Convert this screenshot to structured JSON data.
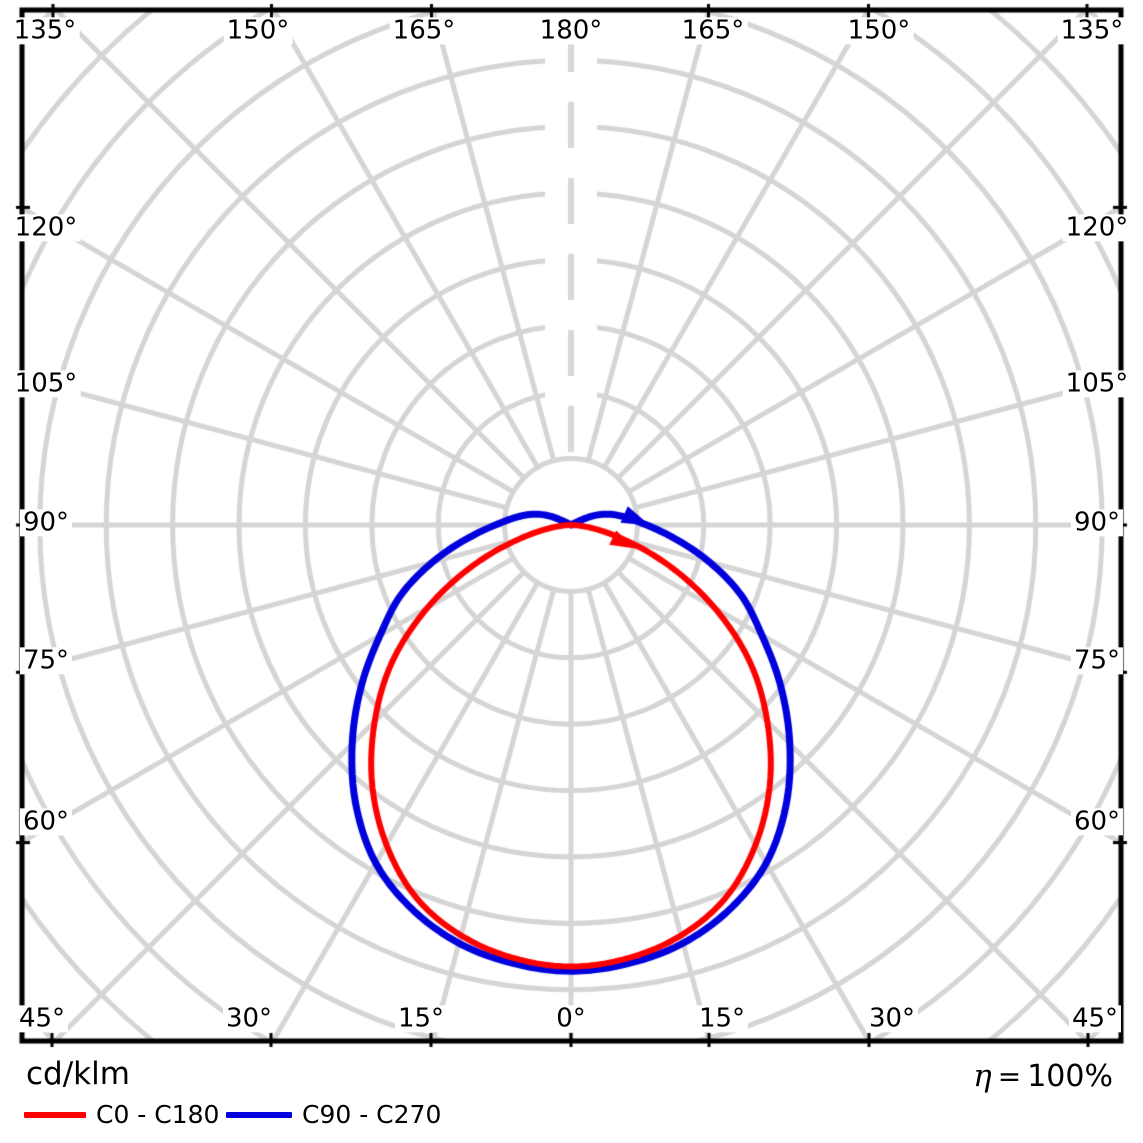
{
  "chart": {
    "unit_label": "cd/klm",
    "angle_labels": {
      "top": [
        "135°",
        "150°",
        "165°",
        "180°",
        "165°",
        "150°",
        "135°"
      ],
      "left": [
        "120°",
        "105°",
        "90°",
        "75°",
        "60°"
      ],
      "right": [
        "120°",
        "105°",
        "90°",
        "75°",
        "60°"
      ],
      "bottom": [
        "45°",
        "30°",
        "15°",
        "0°",
        "15°",
        "30°",
        "45°"
      ]
    },
    "footer": {
      "legend": [
        {
          "label": "C0 - C180",
          "color": "#ff0000"
        },
        {
          "label": "C90 - C270",
          "color": "#0000dd"
        }
      ],
      "efficiency_symbol": "η",
      "efficiency_equals": "=",
      "efficiency_value": "100%"
    }
  },
  "chart_data": {
    "type": "line",
    "coordinate_system": "polar-photometric",
    "units": "cd/klm",
    "title": "Luminous intensity distribution",
    "gamma_step_deg": 7.5,
    "symmetric_mirror": true,
    "grid": {
      "ring_step_cd_klm": 100,
      "ring_count": 11,
      "angle_step_deg": 15,
      "color": "#d5d5d5",
      "axis_180_style": "dashed"
    },
    "series": [
      {
        "name": "C0 - C180",
        "color": "#ff0000",
        "gamma_max_deg": 90,
        "gamma_deg": [
          0,
          7.5,
          15,
          22.5,
          30,
          37.5,
          45,
          52.5,
          60,
          67.5,
          75,
          82.5,
          90
        ],
        "values": [
          665,
          658,
          640,
          608,
          556,
          492,
          418,
          340,
          250,
          160,
          80,
          28,
          0
        ]
      },
      {
        "name": "C90 - C270",
        "color": "#0000dd",
        "gamma_max_deg": 120,
        "gamma_deg": [
          0,
          7.5,
          15,
          22.5,
          30,
          37.5,
          45,
          52.5,
          60,
          67.5,
          75,
          82.5,
          90,
          97.5,
          105,
          112.5,
          120
        ],
        "values": [
          672,
          666,
          652,
          626,
          588,
          532,
          466,
          398,
          332,
          278,
          216,
          158,
          114,
          85,
          62,
          36,
          0
        ]
      }
    ],
    "efficiency": "η = 100%"
  }
}
